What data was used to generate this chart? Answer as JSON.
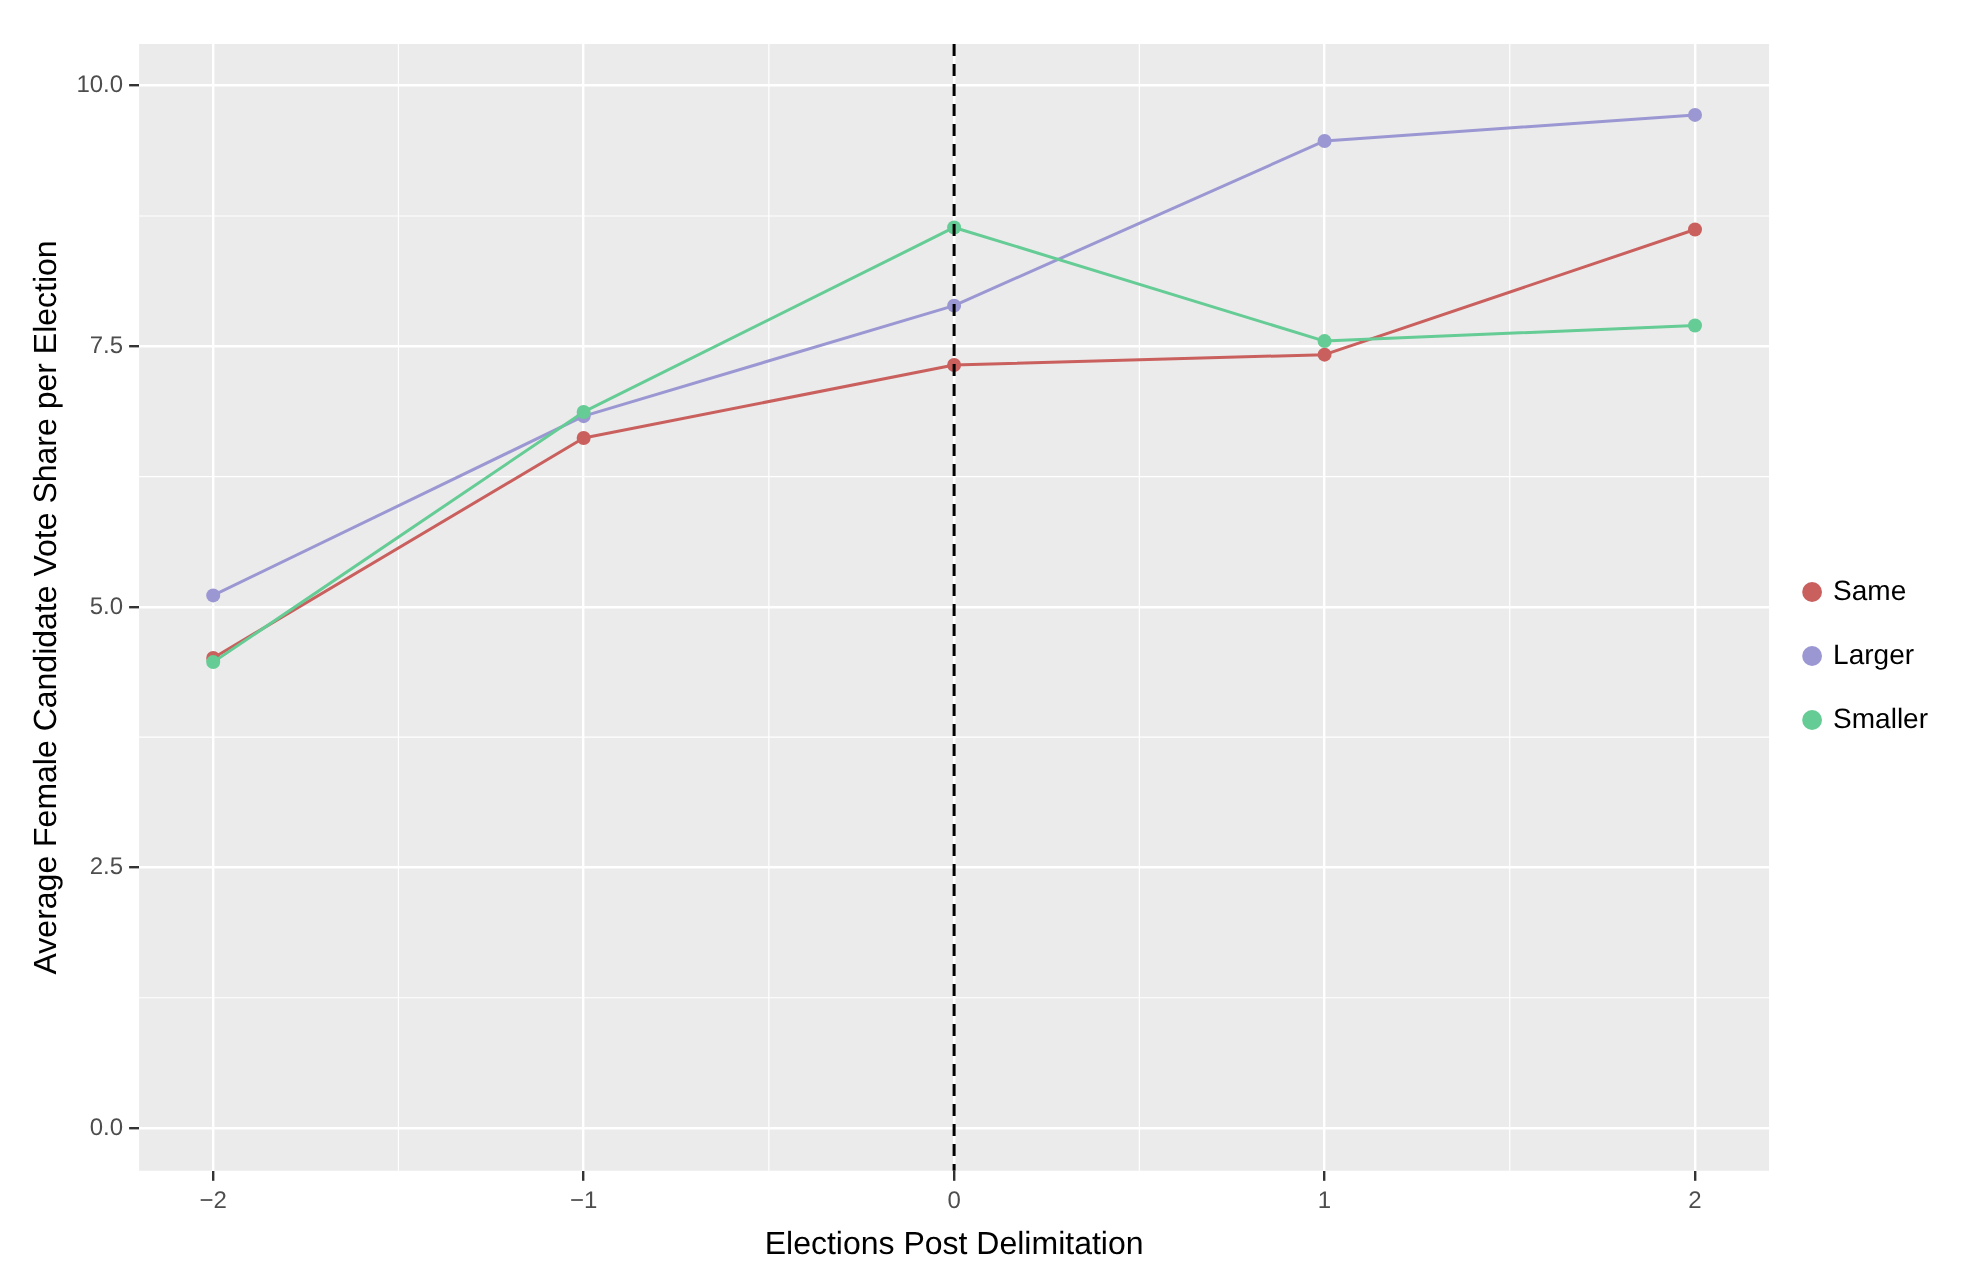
{
  "chart_data": {
    "type": "line",
    "xlabel": "Elections Post Delimitation",
    "ylabel": "Average Female Candidate Vote Share per Election",
    "x": [
      -2,
      -1,
      0,
      1,
      2
    ],
    "series": [
      {
        "name": "Same",
        "color": "#c9605e",
        "values": [
          4.51,
          6.62,
          7.32,
          7.42,
          8.62
        ]
      },
      {
        "name": "Larger",
        "color": "#9b97d3",
        "values": [
          5.11,
          6.83,
          7.89,
          9.47,
          9.72
        ]
      },
      {
        "name": "Smaller",
        "color": "#64cc94",
        "values": [
          4.47,
          6.87,
          8.64,
          7.55,
          7.7
        ]
      }
    ],
    "xlim": [
      -2.2,
      2.2
    ],
    "ylim": [
      -0.41,
      10.4
    ],
    "xticks": [
      {
        "value": -2,
        "label": "−2"
      },
      {
        "value": -1,
        "label": "−1"
      },
      0,
      1,
      2
    ],
    "yticks": [
      {
        "value": 0,
        "label": "0.0"
      },
      {
        "value": 2.5,
        "label": "2.5"
      },
      {
        "value": 5,
        "label": "5.0"
      },
      {
        "value": 7.5,
        "label": "7.5"
      },
      {
        "value": 10,
        "label": "10.0"
      }
    ],
    "ref_lines": [
      {
        "axis": "x",
        "value": 0,
        "color": "#000000",
        "line_style": "dashed"
      }
    ],
    "grid": true,
    "legend": "right",
    "marker": "circle",
    "line_style": "solid"
  }
}
